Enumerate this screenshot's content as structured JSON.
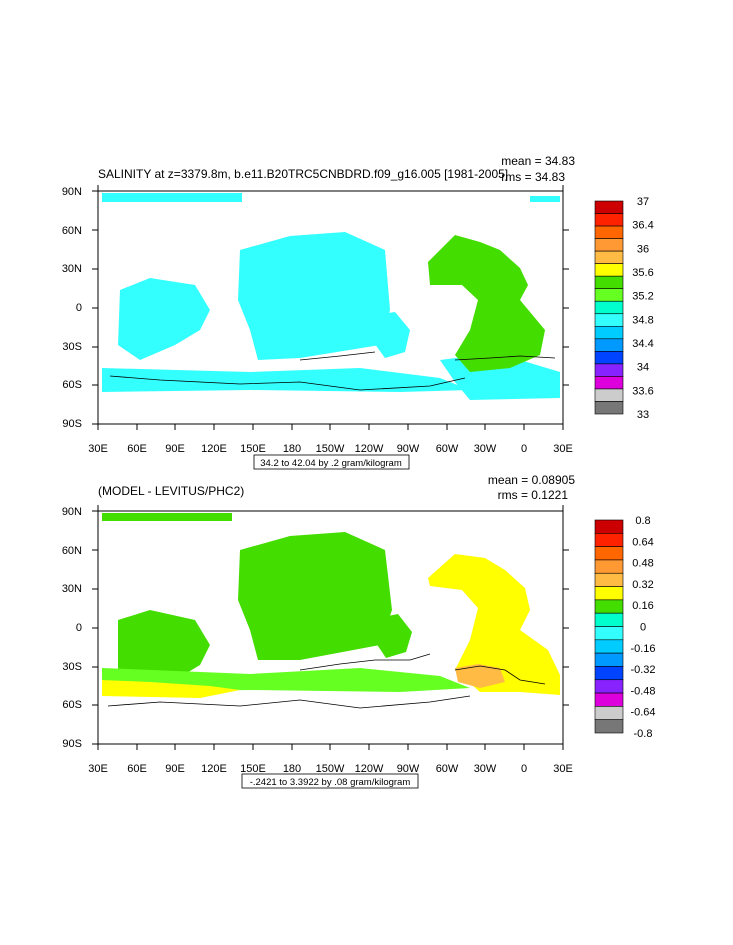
{
  "chart_data": [
    {
      "type": "heatmap",
      "title": "SALINITY at z=3379.8m, b.e11.B20TRC5CNBDRD.f09_g16.005 [1981-2005]",
      "stats": [
        "mean = 34.83",
        "rms = 34.83"
      ],
      "x_ticks": [
        "30E",
        "60E",
        "90E",
        "120E",
        "150E",
        "180",
        "150W",
        "120W",
        "90W",
        "60W",
        "30W",
        "0",
        "30E"
      ],
      "y_ticks": [
        "90N",
        "60N",
        "30N",
        "0",
        "30S",
        "60S",
        "90S"
      ],
      "contour_note": "34.2 to 42.04 by .2 gram/kilogram",
      "colorbar": {
        "labels": [
          "37",
          "36.4",
          "36",
          "35.6",
          "35.2",
          "34.8",
          "34.4",
          "34",
          "33.6",
          "33"
        ],
        "colors": [
          "#cc0000",
          "#ff2200",
          "#ff6600",
          "#ff9933",
          "#ffbb44",
          "#ffff00",
          "#44dd00",
          "#66ff22",
          "#00ffcc",
          "#33ffff",
          "#00ccff",
          "#0099ff",
          "#0044ff",
          "#8822ff",
          "#dd00dd",
          "#cccccc",
          "#777777"
        ]
      }
    },
    {
      "type": "heatmap",
      "title": "(MODEL - LEVITUS/PHC2)",
      "stats": [
        "mean = 0.08905",
        "rms = 0.1221"
      ],
      "x_ticks": [
        "30E",
        "60E",
        "90E",
        "120E",
        "150E",
        "180",
        "150W",
        "120W",
        "90W",
        "60W",
        "30W",
        "0",
        "30E"
      ],
      "y_ticks": [
        "90N",
        "60N",
        "30N",
        "0",
        "30S",
        "60S",
        "90S"
      ],
      "contour_note": "-.2421 to 3.3922 by .08 gram/kilogram",
      "colorbar": {
        "labels": [
          "0.8",
          "0.64",
          "0.48",
          "0.32",
          "0.16",
          "0",
          "-0.16",
          "-0.32",
          "-0.48",
          "-0.64",
          "-0.8"
        ],
        "colors": [
          "#cc0000",
          "#ff2200",
          "#ff6600",
          "#ff9933",
          "#ffbb44",
          "#ffff00",
          "#44dd00",
          "#00ffcc",
          "#33ffff",
          "#00ccff",
          "#0099ff",
          "#0044ff",
          "#8822ff",
          "#dd00dd",
          "#cccccc",
          "#777777"
        ]
      }
    }
  ]
}
